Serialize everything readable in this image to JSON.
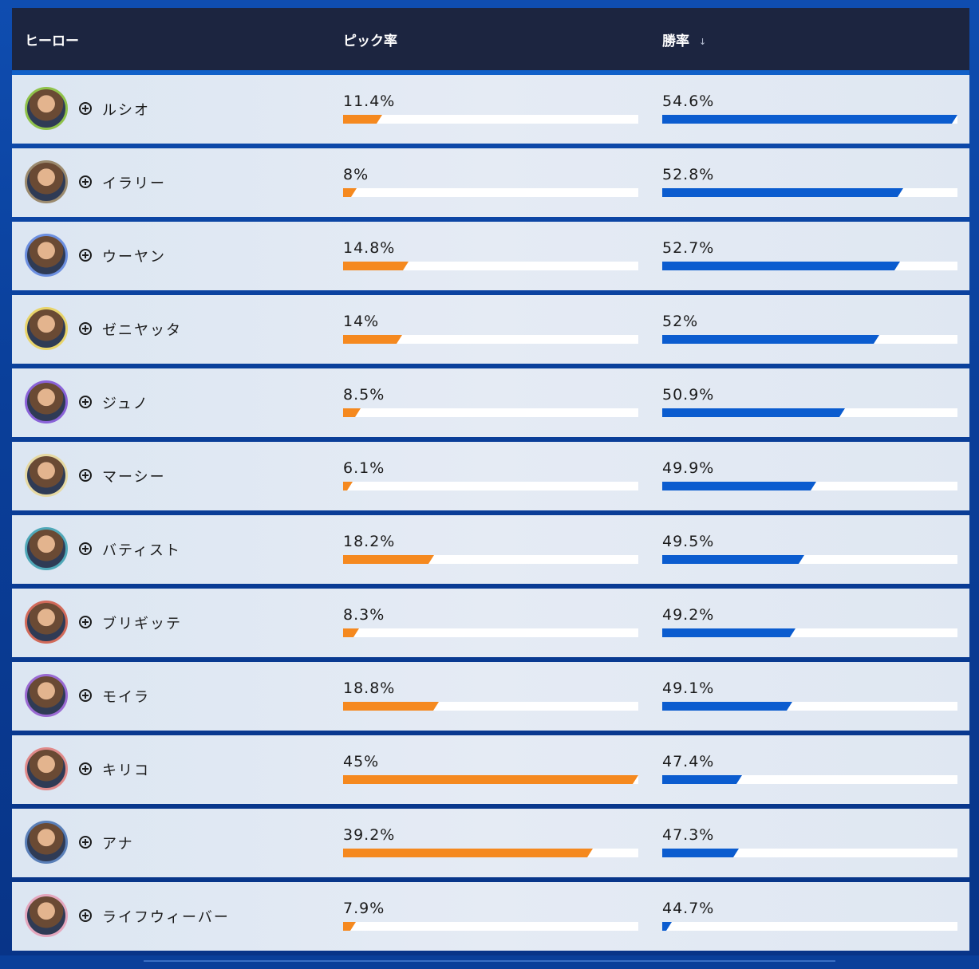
{
  "header": {
    "hero_label": "ヒーロー",
    "pick_label": "ピック率",
    "win_label": "勝率",
    "sort_indicator": "↓"
  },
  "colors": {
    "header_bg": "#1c2540",
    "pick_bar": "#f5891f",
    "win_bar": "#0b5ccf",
    "row_bg": "#e2e9f3",
    "page_bg": "#0a3f9a"
  },
  "rows": [
    {
      "name": "ルシオ",
      "pick": "11.4%",
      "win": "54.6%",
      "pick_fraction": 0.132,
      "win_fraction": 1.0,
      "ring": "#8fc24a"
    },
    {
      "name": "イラリー",
      "pick": "8%",
      "win": "52.8%",
      "pick_fraction": 0.045,
      "win_fraction": 0.815,
      "ring": "#9b8a6e"
    },
    {
      "name": "ウーヤン",
      "pick": "14.8%",
      "win": "52.7%",
      "pick_fraction": 0.222,
      "win_fraction": 0.805,
      "ring": "#6c8fe0"
    },
    {
      "name": "ゼニヤッタ",
      "pick": "14%",
      "win": "52%",
      "pick_fraction": 0.2,
      "win_fraction": 0.735,
      "ring": "#e8d46a"
    },
    {
      "name": "ジュノ",
      "pick": "8.5%",
      "win": "50.9%",
      "pick_fraction": 0.06,
      "win_fraction": 0.62,
      "ring": "#8a62d8"
    },
    {
      "name": "マーシー",
      "pick": "6.1%",
      "win": "49.9%",
      "pick_fraction": 0.03,
      "win_fraction": 0.522,
      "ring": "#e6d9a2"
    },
    {
      "name": "バティスト",
      "pick": "18.2%",
      "win": "49.5%",
      "pick_fraction": 0.307,
      "win_fraction": 0.48,
      "ring": "#4fa8b8"
    },
    {
      "name": "ブリギッテ",
      "pick": "8.3%",
      "win": "49.2%",
      "pick_fraction": 0.055,
      "win_fraction": 0.452,
      "ring": "#d26a5a"
    },
    {
      "name": "モイラ",
      "pick": "18.8%",
      "win": "49.1%",
      "pick_fraction": 0.323,
      "win_fraction": 0.44,
      "ring": "#9a6ad2"
    },
    {
      "name": "キリコ",
      "pick": "45%",
      "win": "47.4%",
      "pick_fraction": 1.0,
      "win_fraction": 0.27,
      "ring": "#e08a8a"
    },
    {
      "name": "アナ",
      "pick": "39.2%",
      "win": "47.3%",
      "pick_fraction": 0.845,
      "win_fraction": 0.26,
      "ring": "#5a7fb8"
    },
    {
      "name": "ライフウィーバー",
      "pick": "7.9%",
      "win": "44.7%",
      "pick_fraction": 0.042,
      "win_fraction": 0.03,
      "ring": "#e4a6bd"
    }
  ]
}
